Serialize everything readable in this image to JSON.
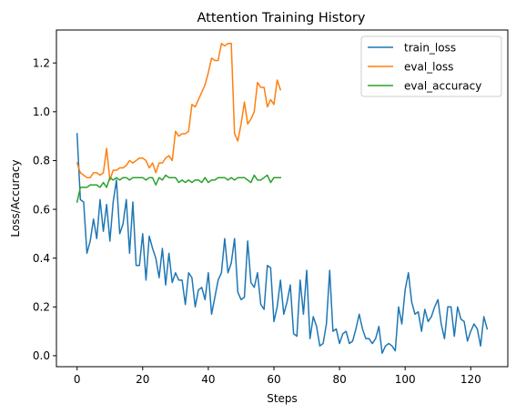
{
  "chart_data": {
    "type": "line",
    "title": "Attention Training History",
    "xlabel": "Steps",
    "ylabel": "Loss/Accuracy",
    "xlim": [
      -6.3,
      131.3
    ],
    "ylim": [
      -0.045,
      1.335
    ],
    "xticks": [
      0,
      20,
      40,
      60,
      80,
      100,
      120
    ],
    "yticks": [
      0.0,
      0.2,
      0.4,
      0.6,
      0.8,
      1.0,
      1.2
    ],
    "xtick_labels": [
      "0",
      "20",
      "40",
      "60",
      "80",
      "100",
      "120"
    ],
    "ytick_labels": [
      "0.0",
      "0.2",
      "0.4",
      "0.6",
      "0.8",
      "1.0",
      "1.2"
    ],
    "grid": false,
    "legend_position": "top-right",
    "series": [
      {
        "name": "train_loss",
        "color": "#1f77b4",
        "x": [
          0,
          1,
          2,
          3,
          4,
          5,
          6,
          7,
          8,
          9,
          10,
          11,
          12,
          13,
          14,
          15,
          16,
          17,
          18,
          19,
          20,
          21,
          22,
          23,
          24,
          25,
          26,
          27,
          28,
          29,
          30,
          31,
          32,
          33,
          34,
          35,
          36,
          37,
          38,
          39,
          40,
          41,
          42,
          43,
          44,
          45,
          46,
          47,
          48,
          49,
          50,
          51,
          52,
          53,
          54,
          55,
          56,
          57,
          58,
          59,
          60,
          61,
          62,
          63,
          64,
          65,
          66,
          67,
          68,
          69,
          70,
          71,
          72,
          73,
          74,
          75,
          76,
          77,
          78,
          79,
          80,
          81,
          82,
          83,
          84,
          85,
          86,
          87,
          88,
          89,
          90,
          91,
          92,
          93,
          94,
          95,
          96,
          97,
          98,
          99,
          100,
          101,
          102,
          103,
          104,
          105,
          106,
          107,
          108,
          109,
          110,
          111,
          112,
          113,
          114,
          115,
          116,
          117,
          118,
          119,
          120,
          121,
          122,
          123,
          124,
          125
        ],
        "values": [
          0.91,
          0.64,
          0.63,
          0.42,
          0.47,
          0.56,
          0.48,
          0.64,
          0.51,
          0.62,
          0.47,
          0.63,
          0.72,
          0.5,
          0.54,
          0.64,
          0.42,
          0.63,
          0.37,
          0.37,
          0.5,
          0.31,
          0.49,
          0.44,
          0.4,
          0.32,
          0.44,
          0.29,
          0.42,
          0.3,
          0.34,
          0.31,
          0.31,
          0.21,
          0.34,
          0.32,
          0.2,
          0.27,
          0.28,
          0.23,
          0.34,
          0.17,
          0.24,
          0.31,
          0.34,
          0.48,
          0.34,
          0.38,
          0.48,
          0.26,
          0.23,
          0.24,
          0.47,
          0.3,
          0.28,
          0.34,
          0.21,
          0.19,
          0.37,
          0.36,
          0.14,
          0.2,
          0.31,
          0.17,
          0.22,
          0.29,
          0.09,
          0.08,
          0.31,
          0.17,
          0.35,
          0.07,
          0.16,
          0.12,
          0.04,
          0.05,
          0.13,
          0.35,
          0.1,
          0.11,
          0.05,
          0.09,
          0.1,
          0.05,
          0.06,
          0.11,
          0.17,
          0.11,
          0.07,
          0.07,
          0.05,
          0.07,
          0.12,
          0.01,
          0.04,
          0.05,
          0.04,
          0.02,
          0.2,
          0.13,
          0.27,
          0.34,
          0.22,
          0.17,
          0.18,
          0.1,
          0.19,
          0.14,
          0.16,
          0.2,
          0.23,
          0.13,
          0.07,
          0.2,
          0.2,
          0.08,
          0.2,
          0.15,
          0.14,
          0.06,
          0.1,
          0.13,
          0.11,
          0.04,
          0.16,
          0.11
        ]
      },
      {
        "name": "eval_loss",
        "color": "#ff7f0e",
        "x": [
          0,
          1,
          2,
          3,
          4,
          5,
          6,
          7,
          8,
          9,
          10,
          11,
          12,
          13,
          14,
          15,
          16,
          17,
          18,
          19,
          20,
          21,
          22,
          23,
          24,
          25,
          26,
          27,
          28,
          29,
          30,
          31,
          32,
          33,
          34,
          35,
          36,
          37,
          38,
          39,
          40,
          41,
          42,
          43,
          44,
          45,
          46,
          47,
          48,
          49,
          50,
          51,
          52,
          53,
          54,
          55,
          56,
          57,
          58,
          59,
          60,
          61,
          62
        ],
        "values": [
          0.79,
          0.75,
          0.74,
          0.73,
          0.73,
          0.75,
          0.75,
          0.74,
          0.75,
          0.85,
          0.72,
          0.76,
          0.76,
          0.77,
          0.77,
          0.78,
          0.8,
          0.79,
          0.8,
          0.81,
          0.81,
          0.8,
          0.77,
          0.79,
          0.75,
          0.79,
          0.79,
          0.81,
          0.82,
          0.8,
          0.92,
          0.9,
          0.91,
          0.91,
          0.92,
          1.03,
          1.02,
          1.05,
          1.08,
          1.11,
          1.16,
          1.22,
          1.21,
          1.21,
          1.28,
          1.27,
          1.28,
          1.28,
          0.91,
          0.88,
          0.95,
          1.04,
          0.95,
          0.97,
          1.0,
          1.12,
          1.1,
          1.1,
          1.02,
          1.05,
          1.03,
          1.13,
          1.09
        ]
      },
      {
        "name": "eval_accuracy",
        "color": "#2ca02c",
        "x": [
          0,
          1,
          2,
          3,
          4,
          5,
          6,
          7,
          8,
          9,
          10,
          11,
          12,
          13,
          14,
          15,
          16,
          17,
          18,
          19,
          20,
          21,
          22,
          23,
          24,
          25,
          26,
          27,
          28,
          29,
          30,
          31,
          32,
          33,
          34,
          35,
          36,
          37,
          38,
          39,
          40,
          41,
          42,
          43,
          44,
          45,
          46,
          47,
          48,
          49,
          50,
          51,
          52,
          53,
          54,
          55,
          56,
          57,
          58,
          59,
          60,
          61,
          62
        ],
        "values": [
          0.63,
          0.69,
          0.69,
          0.69,
          0.7,
          0.7,
          0.7,
          0.69,
          0.71,
          0.69,
          0.73,
          0.72,
          0.73,
          0.72,
          0.73,
          0.73,
          0.72,
          0.73,
          0.73,
          0.73,
          0.73,
          0.72,
          0.73,
          0.73,
          0.7,
          0.73,
          0.72,
          0.74,
          0.73,
          0.73,
          0.73,
          0.71,
          0.72,
          0.71,
          0.72,
          0.71,
          0.72,
          0.72,
          0.71,
          0.73,
          0.71,
          0.72,
          0.72,
          0.73,
          0.73,
          0.73,
          0.72,
          0.73,
          0.72,
          0.73,
          0.73,
          0.73,
          0.72,
          0.71,
          0.74,
          0.72,
          0.72,
          0.73,
          0.74,
          0.71,
          0.73,
          0.73,
          0.73
        ]
      }
    ]
  }
}
